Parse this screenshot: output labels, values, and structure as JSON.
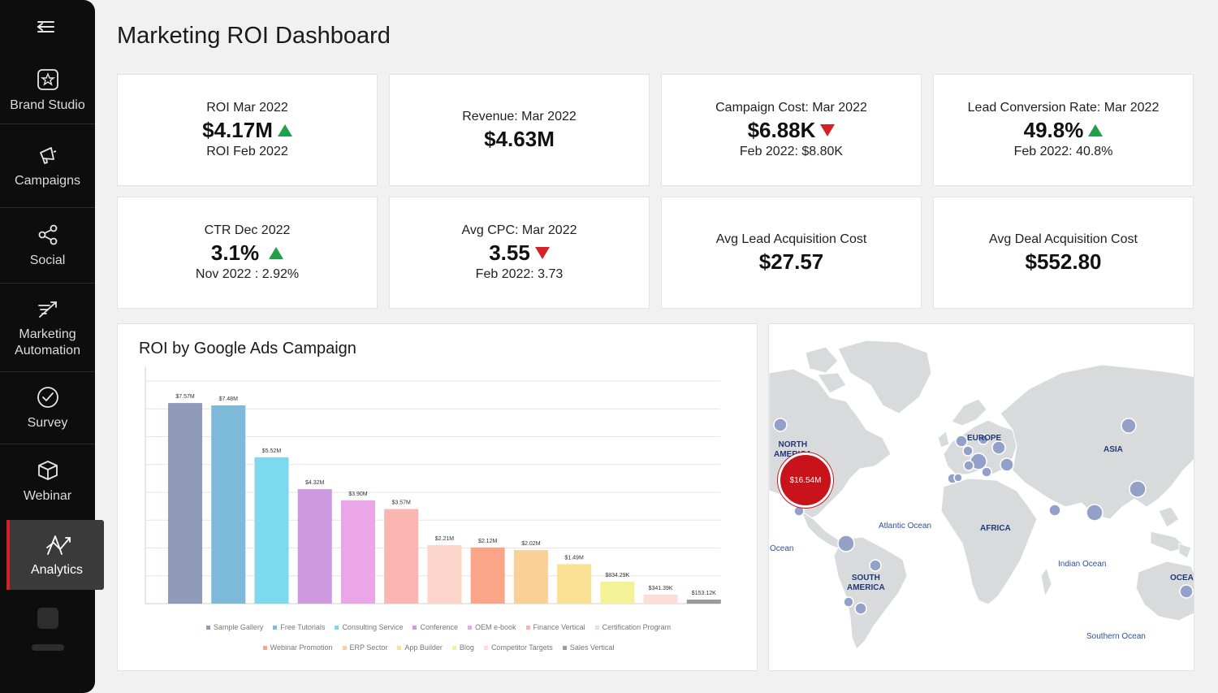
{
  "sidebar": {
    "items": [
      {
        "label": "Brand Studio",
        "icon": "brand-studio-icon"
      },
      {
        "label": "Campaigns",
        "icon": "megaphone-icon"
      },
      {
        "label": "Social",
        "icon": "share-nodes-icon"
      },
      {
        "label": "Marketing Automation",
        "icon": "automation-icon"
      },
      {
        "label": "Survey",
        "icon": "check-circle-icon"
      },
      {
        "label": "Webinar",
        "icon": "cube-icon"
      },
      {
        "label": "Analytics",
        "icon": "analytics-icon",
        "active": true
      }
    ],
    "accent": "#d71f26"
  },
  "page": {
    "title": "Marketing ROI Dashboard"
  },
  "kpis": [
    {
      "label": "ROI Mar 2022",
      "value": "$4.17M",
      "trend": "up",
      "sub": "ROI Feb 2022"
    },
    {
      "label": "Revenue: Mar 2022",
      "value": "$4.63M",
      "trend": "",
      "sub": ""
    },
    {
      "label": "Campaign Cost: Mar 2022",
      "value": "$6.88K",
      "trend": "down",
      "sub": "Feb 2022: $8.80K"
    },
    {
      "label": "Lead Conversion Rate: Mar 2022",
      "value": "49.8%",
      "trend": "up",
      "sub": "Feb 2022: 40.8%"
    },
    {
      "label": "CTR Dec 2022",
      "value": "3.1%",
      "trend": "up",
      "sub": "Nov  2022 : 2.92%"
    },
    {
      "label": "Avg CPC: Mar 2022",
      "value": "3.55",
      "trend": "down",
      "sub": "Feb 2022: 3.73"
    },
    {
      "label": "Avg Lead Acquisition Cost",
      "value": "$27.57",
      "trend": "",
      "sub": ""
    },
    {
      "label": "Avg Deal Acquisition Cost",
      "value": "$552.80",
      "trend": "",
      "sub": ""
    }
  ],
  "chart": {
    "title": "ROI by Google Ads Campaign"
  },
  "chart_data": {
    "type": "bar",
    "title": "ROI by Google Ads Campaign",
    "xlabel": "",
    "ylabel": "",
    "ylim": [
      0,
      8.4
    ],
    "grid": true,
    "legend_position": "bottom",
    "series": [
      {
        "name": "Sample Gallery",
        "value": 7.57,
        "label": "$7.57M",
        "color": "#8f9bb8"
      },
      {
        "name": "Free Tutorials",
        "value": 7.48,
        "label": "$7.48M",
        "color": "#7db9d8"
      },
      {
        "name": "Consulting Service",
        "value": 5.52,
        "label": "$5.52M",
        "color": "#7dd9ef"
      },
      {
        "name": "Conference",
        "value": 4.32,
        "label": "$4.32M",
        "color": "#cd99df"
      },
      {
        "name": "OEM e-book",
        "value": 3.9,
        "label": "$3.90M",
        "color": "#eba6e8"
      },
      {
        "name": "Finance Vertical",
        "value": 3.57,
        "label": "$3.57M",
        "color": "#fbb5b2"
      },
      {
        "name": "Certification Program",
        "value": 2.21,
        "label": "$2.21M",
        "color": "#fcd5cb"
      },
      {
        "name": "Webinar Promotion",
        "value": 2.12,
        "label": "$2.12M",
        "color": "#faa488"
      },
      {
        "name": "ERP Sector",
        "value": 2.02,
        "label": "$2.02M",
        "color": "#fbd098"
      },
      {
        "name": "App Builder",
        "value": 1.49,
        "label": "$1.49M",
        "color": "#fbe193"
      },
      {
        "name": "Blog",
        "value": 0.834,
        "label": "$834.29K",
        "color": "#f4f297"
      },
      {
        "name": "Competitor Targets",
        "value": 0.341,
        "label": "$341.39K",
        "color": "#fcddd8"
      },
      {
        "name": "Sales Vertical",
        "value": 0.153,
        "label": "$153.12K",
        "color": "#9b9b9b"
      }
    ]
  },
  "map": {
    "highlight_value": "$16.54M",
    "highlight_color": "#c8131a",
    "bubble_color": "#93a1c8",
    "continents": [
      "NORTH\nAMERICA",
      "EUROPE",
      "ASIA",
      "AFRICA",
      "SOUTH\nAMERICA",
      "OCEANIA"
    ],
    "oceans": [
      "Atlantic Ocean",
      "Indian Ocean",
      "Southern Ocean",
      "Ocean"
    ]
  }
}
